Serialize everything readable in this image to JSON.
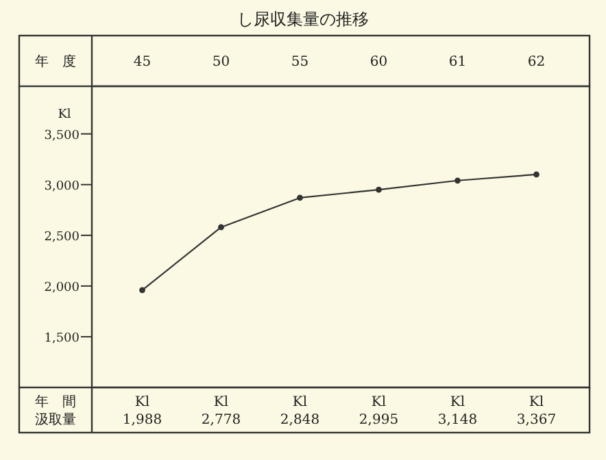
{
  "chart_data": {
    "type": "line",
    "title": "し尿収集量の推移",
    "ylabel": "Kl",
    "categories": [
      "45",
      "50",
      "55",
      "60",
      "61",
      "62"
    ],
    "series": [
      {
        "color": "#333333",
        "values": [
          1960,
          2580,
          2870,
          2950,
          3040,
          3100
        ]
      }
    ],
    "ylim": [
      1000,
      3970
    ],
    "yticks": [
      {
        "value": 1500,
        "label": "1,500"
      },
      {
        "value": 2000,
        "label": "2,000"
      },
      {
        "value": 2500,
        "label": "2,500"
      },
      {
        "value": 3000,
        "label": "3,000"
      },
      {
        "value": 3500,
        "label": "3,500"
      }
    ],
    "marker": "circle",
    "line_style": "solid",
    "grid": false,
    "annotations": [
      "年　度",
      "年　間",
      "汲取量",
      "Kl\n1,988",
      "Kl\n2,778",
      "Kl\n2,848",
      "Kl\n2,995",
      "Kl\n3,148",
      "Kl\n3,367"
    ]
  }
}
